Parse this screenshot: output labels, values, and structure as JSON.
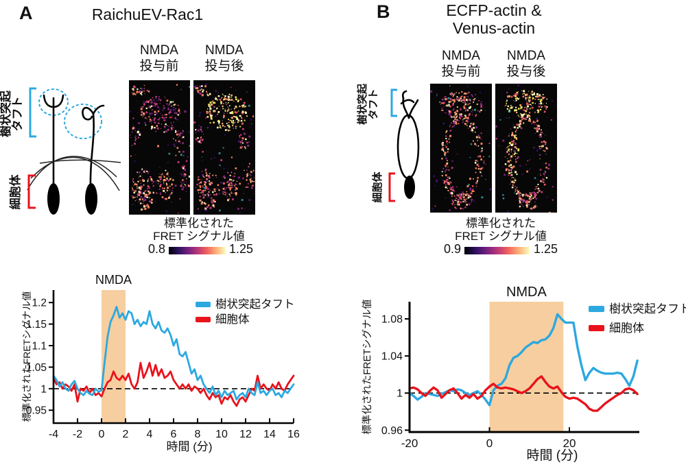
{
  "figure": {
    "panels": [
      {
        "label": "A",
        "title_lines": [
          "RaichuEV-Rac1"
        ],
        "diagram": {
          "tuft_label_lines": [
            "樹状突起",
            "タフト"
          ],
          "soma_label": "細胞体"
        },
        "image_headers": [
          {
            "line1": "NMDA",
            "line2": "投与前"
          },
          {
            "line1": "NMDA",
            "line2": "投与後"
          }
        ],
        "colorbar": {
          "title_lines": [
            "標準化された",
            "FRET シグナル値"
          ],
          "min": "0.8",
          "max": "1.25"
        }
      },
      {
        "label": "B",
        "title_lines": [
          "ECFP-actin &",
          "Venus-actin"
        ],
        "diagram": {
          "tuft_label_lines": [
            "樹状突起",
            "タフト"
          ],
          "soma_label": "細胞体"
        },
        "image_headers": [
          {
            "line1": "NMDA",
            "line2": "投与前"
          },
          {
            "line1": "NMDA",
            "line2": "投与後"
          }
        ],
        "colorbar": {
          "title_lines": [
            "標準化された",
            "FRET シグナル値"
          ],
          "min": "0.9",
          "max": "1.25"
        }
      }
    ]
  },
  "colors": {
    "tuft_blue": "#2CA8E0",
    "soma_red": "#E8131B",
    "stim_band": "#F6CEA0",
    "colorbar_gradient": [
      "#000004",
      "#2c115f",
      "#721f81",
      "#b63679",
      "#f1605d",
      "#feb078",
      "#fcfdbf"
    ]
  },
  "chart_data": [
    {
      "type": "line",
      "panel": "A",
      "title": "",
      "xlabel": "時間 (分)",
      "ylabel": "標準化されたFRETシグナル値",
      "xlim": [
        -4,
        16
      ],
      "ylim": [
        0.92,
        1.229
      ],
      "xticks": [
        -4,
        -2,
        0,
        2,
        4,
        6,
        8,
        10,
        12,
        14,
        16
      ],
      "yticks": [
        0.95,
        1,
        1.05,
        1.1,
        1.15,
        1.2
      ],
      "grid": false,
      "legend_position": "upper right",
      "baseline_y": 1,
      "stim_label": "NMDA",
      "stim_window": [
        0,
        2
      ],
      "x": [
        -4,
        -3.75,
        -3.5,
        -3.25,
        -3,
        -2.75,
        -2.5,
        -2.25,
        -2,
        -1.75,
        -1.5,
        -1.25,
        -1,
        -0.75,
        -0.5,
        -0.25,
        0,
        0.25,
        0.5,
        0.75,
        1,
        1.25,
        1.5,
        1.75,
        2,
        2.25,
        2.5,
        2.75,
        3,
        3.25,
        3.5,
        3.75,
        4,
        4.25,
        4.5,
        4.75,
        5,
        5.25,
        5.5,
        5.75,
        6,
        6.25,
        6.5,
        6.75,
        7,
        7.25,
        7.5,
        7.75,
        8,
        8.25,
        8.5,
        8.75,
        9,
        9.25,
        9.5,
        9.75,
        10,
        10.25,
        10.5,
        10.75,
        11,
        11.25,
        11.5,
        11.75,
        12,
        12.25,
        12.5,
        12.75,
        13,
        13.25,
        13.5,
        13.75,
        14,
        14.25,
        14.5,
        14.75,
        15,
        15.25,
        15.5,
        15.75,
        16
      ],
      "series": [
        {
          "name": "樹状突起タフト",
          "color": "#2CA8E0",
          "values": [
            1.03,
            1.02,
            1.005,
            1.015,
            1,
            0.995,
            1.01,
            1.018,
            1,
            0.99,
            0.985,
            0.995,
            0.988,
            0.985,
            1,
            0.993,
            0.996,
            1.06,
            1.12,
            1.155,
            1.17,
            1.19,
            1.165,
            1.175,
            1.16,
            1.18,
            1.175,
            1.15,
            1.16,
            1.145,
            1.155,
            1.15,
            1.18,
            1.15,
            1.14,
            1.155,
            1.135,
            1.13,
            1.14,
            1.125,
            1.1,
            1.115,
            1.08,
            1.075,
            1.085,
            1.06,
            1.035,
            1.045,
            1.02,
            1.03,
            1.01,
            1,
            0.99,
            1.005,
            0.985,
            0.995,
            0.98,
            0.995,
            0.985,
            0.99,
            0.995,
            0.975,
            0.985,
            0.99,
            0.98,
            1,
            0.99,
            0.985,
            1.015,
            0.99,
            0.995,
            0.985,
            0.995,
            1,
            0.985,
            0.99,
            0.98,
            0.995,
            0.99,
            1,
            1.01
          ]
        },
        {
          "name": "細胞体",
          "color": "#E8131B",
          "values": [
            1.025,
            1.01,
            1.015,
            1,
            1.01,
            1.005,
            0.995,
            1.01,
            0.97,
            1,
            0.995,
            1.005,
            0.99,
            1,
            0.985,
            0.99,
            0.982,
            1,
            1.015,
            1.02,
            1.04,
            1.025,
            1.02,
            1.03,
            1.02,
            1.035,
            1.01,
            1,
            1.015,
            1.06,
            1.025,
            1.04,
            1.06,
            1.03,
            1.055,
            1.03,
            1.045,
            1.025,
            1.03,
            1.04,
            1.02,
            1.01,
            1,
            1.01,
            1,
            1.01,
            0.995,
            1.005,
            1,
            0.99,
            1,
            0.985,
            0.975,
            0.99,
            0.98,
            0.985,
            0.965,
            0.98,
            0.975,
            0.985,
            0.97,
            0.96,
            0.975,
            0.98,
            0.97,
            0.985,
            1,
            0.995,
            1.03,
            1,
            1.01,
            1,
            0.995,
            1.01,
            1,
            1.015,
            1,
            0.995,
            1.01,
            1.02,
            1.03
          ]
        }
      ]
    },
    {
      "type": "line",
      "panel": "B",
      "title": "",
      "xlabel": "時間 (分)",
      "ylabel": "標準化されたFRETシグナル値",
      "xlim": [
        -20,
        37.5
      ],
      "ylim": [
        0.958,
        1.0985
      ],
      "xticks": [
        -20,
        0,
        20
      ],
      "yticks": [
        0.96,
        1,
        1.04,
        1.08
      ],
      "grid": false,
      "legend_position": "upper right",
      "baseline_y": 1,
      "stim_label": "NMDA",
      "stim_window": [
        0,
        18.5
      ],
      "x": [
        -20,
        -19,
        -18,
        -17,
        -16,
        -15,
        -14,
        -13,
        -12,
        -11,
        -10,
        -9,
        -8,
        -7,
        -6,
        -5,
        -4,
        -3,
        -2,
        -1,
        0,
        1,
        2,
        3,
        4,
        5,
        6,
        7,
        8,
        9,
        10,
        11,
        12,
        13,
        14,
        15,
        16,
        17,
        18,
        19,
        20,
        21,
        22,
        23,
        24,
        25,
        26,
        27,
        28,
        29,
        30,
        31,
        32,
        33,
        34,
        35,
        36,
        37
      ],
      "series": [
        {
          "name": "樹状突起タフト",
          "color": "#2CA8E0",
          "values": [
            1,
            0.997,
            0.993,
            0.996,
            1,
            0.999,
            0.998,
            0.997,
            0.999,
            1.001,
            1.003,
            1.002,
            1.004,
            1.003,
            1,
            0.998,
            1,
            1.002,
            0.998,
            0.993,
            0.987,
            1.003,
            1.008,
            1.01,
            1.016,
            1.03,
            1.038,
            1.04,
            1.044,
            1.049,
            1.052,
            1.055,
            1.054,
            1.057,
            1.058,
            1.062,
            1.07,
            1.085,
            1.08,
            1.076,
            1.076,
            1.076,
            1.05,
            1.03,
            1.014,
            1.022,
            1.027,
            1.024,
            1.022,
            1.021,
            1.021,
            1.021,
            1.022,
            1.021,
            1.015,
            1.008,
            1.018,
            1.035
          ]
        },
        {
          "name": "細胞体",
          "color": "#E8131B",
          "values": [
            1.005,
            1.006,
            1.004,
            1,
            0.997,
            1.002,
            1.006,
            1.003,
            0.995,
            0.999,
            1.003,
            1.005,
            1,
            0.994,
            0.998,
            0.995,
            0.999,
            0.994,
            0.997,
            1.003,
            1.007,
            1.01,
            1.006,
            1.005,
            1.006,
            1.005,
            1.004,
            1.002,
            1,
            1.002,
            1.005,
            1.01,
            1.015,
            1.018,
            1.012,
            1.007,
            1.005,
            1.007,
            1.001,
            0.996,
            0.994,
            0.995,
            0.994,
            0.991,
            0.988,
            0.983,
            0.981,
            0.981,
            0.985,
            0.989,
            0.992,
            0.995,
            0.998,
            1,
            1.004,
            1.005,
            1.003,
            0.999
          ]
        }
      ]
    }
  ]
}
